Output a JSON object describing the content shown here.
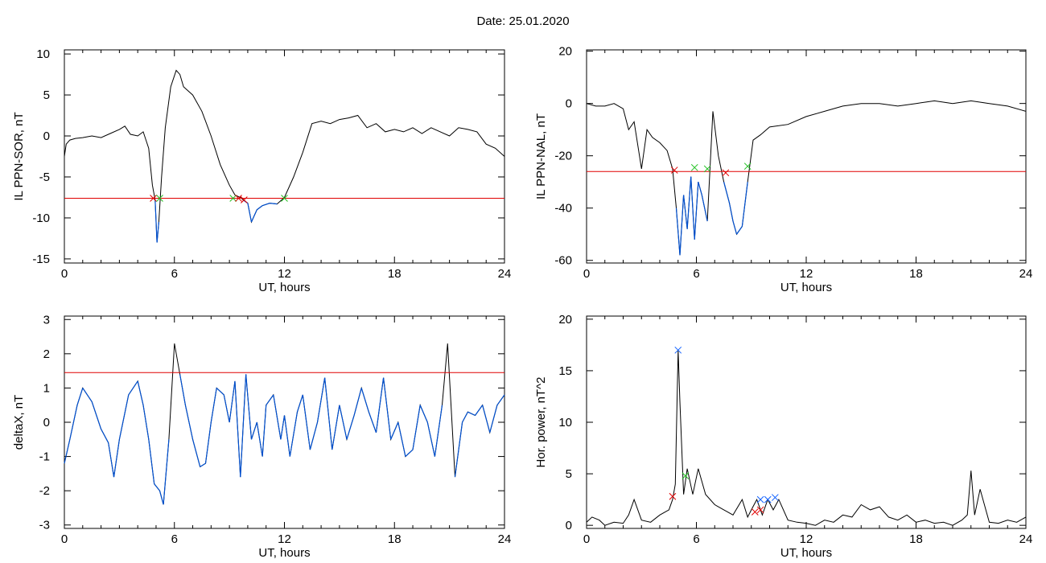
{
  "title": "Date:  25.01.2020",
  "colors": {
    "frame": "#000000",
    "trace": "#000000",
    "below_threshold": "#0050d0",
    "threshold_line": "#e00000",
    "cross_red": "#e00000",
    "cross_green": "#20c020",
    "cross_blue": "#1060ff"
  },
  "chart_data": [
    {
      "type": "line",
      "xlabel": "UT, hours",
      "ylabel": "IL PPN-SOR, nT",
      "xlim": [
        0,
        24
      ],
      "ylim": [
        -15.5,
        10.5
      ],
      "xticks": [
        "0",
        "6",
        "12",
        "18",
        "24"
      ],
      "yticks": [
        "10",
        "5",
        "0",
        "-5",
        "-10",
        "-15"
      ],
      "threshold": -7.6,
      "series": [
        {
          "x": [
            0,
            0.1,
            0.3,
            0.6,
            1.0,
            1.5,
            2.0,
            2.5,
            3.0,
            3.3,
            3.6,
            4.0,
            4.3,
            4.6,
            4.8,
            4.95,
            5.05,
            5.15,
            5.3,
            5.5,
            5.8,
            6.1,
            6.3,
            6.5,
            7.0,
            7.5,
            8.0,
            8.5,
            9.0,
            9.3,
            9.6,
            9.8,
            10.0,
            10.2,
            10.5,
            10.8,
            11.2,
            11.6,
            12.0,
            12.5,
            13.0,
            13.5,
            14.0,
            14.5,
            15.0,
            15.5,
            16.0,
            16.5,
            17.0,
            17.5,
            18.0,
            18.5,
            19.0,
            19.5,
            20.0,
            20.5,
            21.0,
            21.5,
            22.0,
            22.5,
            23.0,
            23.5,
            24.0
          ],
          "y": [
            -2.5,
            -1.0,
            -0.5,
            -0.3,
            -0.2,
            0.0,
            -0.2,
            0.3,
            0.8,
            1.2,
            0.2,
            0.0,
            0.5,
            -1.5,
            -6.0,
            -7.8,
            -13.0,
            -10.5,
            -5.0,
            1.0,
            6.0,
            8.0,
            7.5,
            6.0,
            5.0,
            3.0,
            0.0,
            -3.5,
            -6.0,
            -7.2,
            -7.5,
            -7.9,
            -8.2,
            -10.5,
            -9.0,
            -8.5,
            -8.2,
            -8.3,
            -7.5,
            -5.0,
            -2.0,
            1.5,
            1.8,
            1.5,
            2.0,
            2.2,
            2.5,
            1.0,
            1.5,
            0.5,
            0.8,
            0.5,
            1.0,
            0.3,
            1.0,
            0.5,
            0.0,
            1.0,
            0.8,
            0.5,
            -1.0,
            -1.5,
            -2.5
          ]
        }
      ],
      "markers": [
        {
          "x": 4.85,
          "y": -7.6,
          "color": "red"
        },
        {
          "x": 5.2,
          "y": -7.6,
          "color": "green"
        },
        {
          "x": 9.2,
          "y": -7.6,
          "color": "green"
        },
        {
          "x": 9.5,
          "y": -7.6,
          "color": "red"
        },
        {
          "x": 9.8,
          "y": -7.8,
          "color": "red"
        },
        {
          "x": 12.0,
          "y": -7.6,
          "color": "green"
        }
      ]
    },
    {
      "type": "line",
      "xlabel": "UT, hours",
      "ylabel": "IL PPN-NAL, nT",
      "xlim": [
        0,
        24
      ],
      "ylim": [
        -61,
        20.5
      ],
      "xticks": [
        "0",
        "6",
        "12",
        "18",
        "24"
      ],
      "yticks": [
        "20",
        "0",
        "-20",
        "-40",
        "-60"
      ],
      "threshold": -26,
      "series": [
        {
          "x": [
            0,
            0.5,
            1.0,
            1.5,
            2.0,
            2.3,
            2.6,
            3.0,
            3.3,
            3.6,
            4.0,
            4.4,
            4.7,
            4.9,
            5.1,
            5.3,
            5.5,
            5.7,
            5.9,
            6.1,
            6.3,
            6.6,
            6.9,
            7.2,
            7.5,
            7.8,
            8.0,
            8.2,
            8.5,
            8.8,
            9.1,
            9.5,
            10.0,
            11.0,
            12.0,
            13.0,
            14.0,
            15.0,
            16.0,
            17.0,
            18.0,
            19.0,
            20.0,
            21.0,
            22.0,
            23.0,
            24.0
          ],
          "y": [
            0,
            -1,
            -1,
            0,
            -2,
            -10,
            -7,
            -25,
            -10,
            -13,
            -15,
            -18,
            -25,
            -40,
            -58,
            -35,
            -48,
            -28,
            -52,
            -30,
            -35,
            -45,
            -3,
            -20,
            -30,
            -38,
            -45,
            -50,
            -47,
            -30,
            -14,
            -12,
            -9,
            -8,
            -5,
            -3,
            -1,
            0,
            0,
            -1,
            0,
            1,
            0,
            1,
            0,
            -1,
            -3
          ]
        }
      ],
      "markers": [
        {
          "x": 4.8,
          "y": -25.5,
          "color": "red"
        },
        {
          "x": 5.9,
          "y": -24.5,
          "color": "green"
        },
        {
          "x": 6.6,
          "y": -25.0,
          "color": "green"
        },
        {
          "x": 7.6,
          "y": -26.5,
          "color": "red"
        },
        {
          "x": 8.8,
          "y": -24.0,
          "color": "green"
        }
      ]
    },
    {
      "type": "line",
      "xlabel": "UT, hours",
      "ylabel": "deltaX, nT",
      "xlim": [
        0,
        24
      ],
      "ylim": [
        -3.1,
        3.1
      ],
      "xticks": [
        "0",
        "6",
        "12",
        "18",
        "24"
      ],
      "yticks": [
        "3",
        "2",
        "1",
        "0",
        "-1",
        "-2",
        "-3"
      ],
      "threshold": 1.45,
      "series": [
        {
          "x": [
            0,
            0.3,
            0.7,
            1.0,
            1.5,
            2.0,
            2.4,
            2.7,
            3.0,
            3.5,
            4.0,
            4.3,
            4.6,
            4.9,
            5.2,
            5.4,
            5.7,
            6.0,
            6.3,
            6.6,
            7.0,
            7.4,
            7.7,
            8.0,
            8.3,
            8.7,
            9.0,
            9.3,
            9.6,
            9.9,
            10.2,
            10.5,
            10.8,
            11.0,
            11.4,
            11.8,
            12.0,
            12.3,
            12.7,
            13.0,
            13.4,
            13.8,
            14.2,
            14.6,
            15.0,
            15.4,
            15.8,
            16.2,
            16.6,
            17.0,
            17.4,
            17.8,
            18.2,
            18.6,
            19.0,
            19.4,
            19.8,
            20.2,
            20.6,
            20.9,
            21.3,
            21.7,
            22.0,
            22.4,
            22.8,
            23.2,
            23.6,
            24.0
          ],
          "y": [
            -1.2,
            -0.5,
            0.5,
            1.0,
            0.6,
            -0.2,
            -0.6,
            -1.6,
            -0.5,
            0.8,
            1.2,
            0.5,
            -0.5,
            -1.8,
            -2.0,
            -2.4,
            -0.5,
            2.3,
            1.4,
            0.5,
            -0.5,
            -1.3,
            -1.2,
            0.0,
            1.0,
            0.8,
            0.0,
            1.2,
            -1.6,
            1.4,
            -0.5,
            0.0,
            -1.0,
            0.5,
            0.8,
            -0.5,
            0.2,
            -1.0,
            0.3,
            0.8,
            -0.8,
            0.0,
            1.3,
            -0.8,
            0.5,
            -0.5,
            0.2,
            1.0,
            0.3,
            -0.3,
            1.3,
            -0.5,
            0.0,
            -1.0,
            -0.8,
            0.5,
            0.0,
            -1.0,
            0.5,
            2.3,
            -1.6,
            0.0,
            0.3,
            0.2,
            0.5,
            -0.3,
            0.5,
            0.8
          ]
        }
      ],
      "markers": []
    },
    {
      "type": "line",
      "xlabel": "UT, hours",
      "ylabel": "Hor. power, nT^2",
      "xlim": [
        0,
        24
      ],
      "ylim": [
        -0.3,
        20.3
      ],
      "xticks": [
        "0",
        "6",
        "12",
        "18",
        "24"
      ],
      "yticks": [
        "20",
        "15",
        "10",
        "5",
        "0"
      ],
      "series": [
        {
          "x": [
            0,
            0.3,
            0.7,
            1.0,
            1.5,
            2.0,
            2.3,
            2.6,
            3.0,
            3.5,
            4.0,
            4.5,
            4.7,
            4.85,
            5.0,
            5.1,
            5.3,
            5.5,
            5.8,
            6.1,
            6.5,
            7.0,
            7.5,
            8.0,
            8.5,
            8.8,
            9.0,
            9.3,
            9.6,
            9.9,
            10.2,
            10.5,
            11.0,
            11.5,
            12.0,
            12.5,
            13.0,
            13.5,
            14.0,
            14.5,
            15.0,
            15.5,
            16.0,
            16.5,
            17.0,
            17.5,
            18.0,
            18.5,
            19.0,
            19.5,
            20.0,
            20.5,
            20.8,
            21.0,
            21.2,
            21.5,
            22.0,
            22.5,
            23.0,
            23.5,
            24.0
          ],
          "y": [
            0.3,
            0.8,
            0.5,
            0.0,
            0.3,
            0.2,
            1.0,
            2.5,
            0.5,
            0.3,
            1.0,
            1.5,
            2.5,
            4.0,
            17.0,
            12.0,
            3.0,
            5.5,
            3.0,
            5.5,
            3.0,
            2.0,
            1.5,
            1.0,
            2.5,
            0.8,
            1.5,
            2.5,
            1.0,
            2.5,
            1.5,
            2.5,
            0.5,
            0.3,
            0.2,
            0.0,
            0.5,
            0.3,
            1.0,
            0.8,
            2.0,
            1.5,
            1.8,
            0.8,
            0.5,
            1.0,
            0.3,
            0.5,
            0.2,
            0.3,
            0.0,
            0.5,
            1.0,
            5.3,
            1.0,
            3.5,
            0.3,
            0.2,
            0.5,
            0.3,
            0.8
          ]
        }
      ],
      "markers": [
        {
          "x": 4.7,
          "y": 2.8,
          "color": "red"
        },
        {
          "x": 5.0,
          "y": 17.0,
          "color": "blue"
        },
        {
          "x": 5.4,
          "y": 4.8,
          "color": "green"
        },
        {
          "x": 9.2,
          "y": 1.3,
          "color": "red"
        },
        {
          "x": 9.5,
          "y": 1.5,
          "color": "red"
        },
        {
          "x": 9.5,
          "y": 2.5,
          "color": "blue"
        },
        {
          "x": 9.9,
          "y": 2.5,
          "color": "blue"
        },
        {
          "x": 10.3,
          "y": 2.7,
          "color": "blue"
        }
      ]
    }
  ]
}
